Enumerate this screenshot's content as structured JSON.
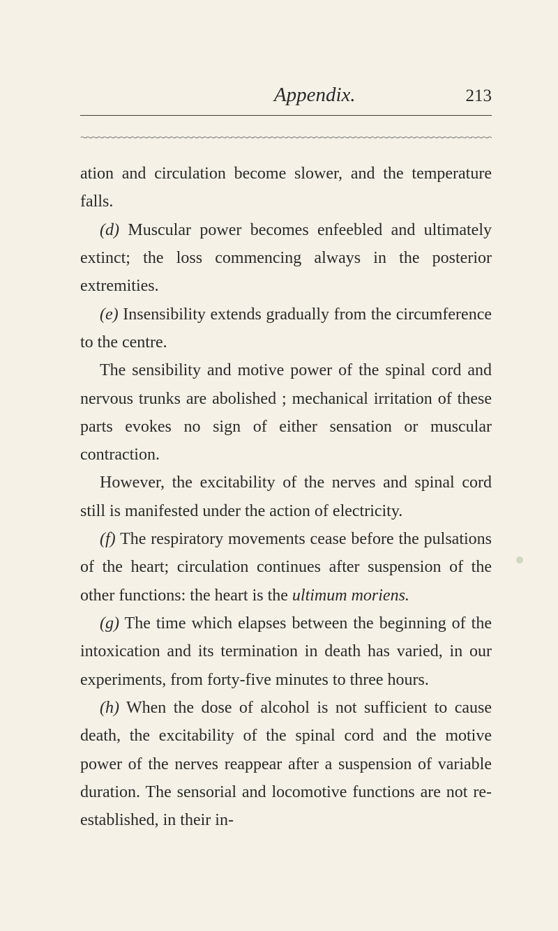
{
  "header": {
    "title": "Appendix.",
    "page_number": "213"
  },
  "content": {
    "p1": "ation and circulation become slower, and the tempera­ture falls.",
    "p2_marker": "(d)",
    "p2": " Muscular power becomes enfeebled and ulti­mately extinct; the loss commencing always in the posterior extremities.",
    "p3_marker": "(e)",
    "p3": " Insensibility extends gradually from the cir­cumference to the centre.",
    "p4": "The sensibility and motive power of the spinal cord and nervous trunks are abolished ; mechanical irrita­tion of these parts evokes no sign of either sensation or muscular contraction.",
    "p5": "However, the excitability of the nerves and spinal cord still is manifested under the action of elec­tricity.",
    "p6_marker": "(f)",
    "p6a": " The respiratory movements cease before the pulsations of the heart; circulation continues after suspension of the other functions: the heart is the ",
    "p6_italic": "ultimum moriens.",
    "p7_marker": "(g)",
    "p7": " The time which elapses between the beginning of the intoxication and its termination in death has varied, in our experiments, from forty-five minutes to three hours.",
    "p8_marker": "(h)",
    "p8": " When the dose of alcohol is not sufficient to cause death, the excitability of the spinal cord and the motive power of the nerves reappear after a sus­pension of variable duration. The sensorial and loco­motive functions are not re-established, in their in-"
  },
  "styling": {
    "background_color": "#f5f1e6",
    "text_color": "#2a2a2a",
    "body_font_size": 24,
    "header_font_size": 29,
    "page_number_font_size": 25,
    "line_height": 1.68
  }
}
